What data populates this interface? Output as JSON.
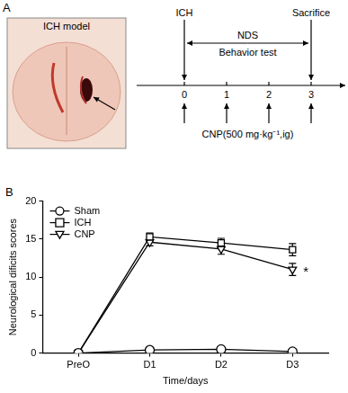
{
  "panels": [
    "A",
    "B"
  ],
  "diagram": {
    "image_caption": "ICH model",
    "timeline": {
      "ticks": [
        0,
        1,
        2,
        3
      ],
      "top_labels": [
        {
          "at": 0,
          "text": "ICH"
        },
        {
          "at": 3,
          "text": "Sacrifice"
        }
      ],
      "span_labels": [
        "NDS",
        "Behavior test"
      ],
      "bottom_label": "CNP(500 mg·kg⁻¹,ig)"
    }
  },
  "chart_data": {
    "type": "line",
    "x_label": "Time/days",
    "y_label": "Neurological dificits scores",
    "categories": [
      "PreO",
      "D1",
      "D2",
      "D3"
    ],
    "ylim": [
      0,
      20
    ],
    "yticks": [
      0,
      5,
      10,
      15,
      20
    ],
    "grid": false,
    "legend": "upper left",
    "series": [
      {
        "name": "Sham",
        "color": "#000000",
        "marker": "circle",
        "values": [
          0,
          0.4,
          0.5,
          0.2
        ],
        "errors": [
          0.1,
          0.15,
          0.2,
          0.1
        ]
      },
      {
        "name": "ICH",
        "color": "#000000",
        "marker": "square",
        "values": [
          0,
          15.3,
          14.5,
          13.6
        ],
        "errors": [
          0.2,
          0.5,
          0.6,
          0.8
        ]
      },
      {
        "name": "CNP",
        "color": "#000000",
        "marker": "triangle-down",
        "values": [
          0,
          14.6,
          13.7,
          11.0
        ],
        "errors": [
          0.2,
          0.5,
          0.7,
          0.8
        ]
      }
    ],
    "annotations": [
      {
        "text": "*",
        "series": "CNP",
        "category": "D3"
      }
    ]
  }
}
